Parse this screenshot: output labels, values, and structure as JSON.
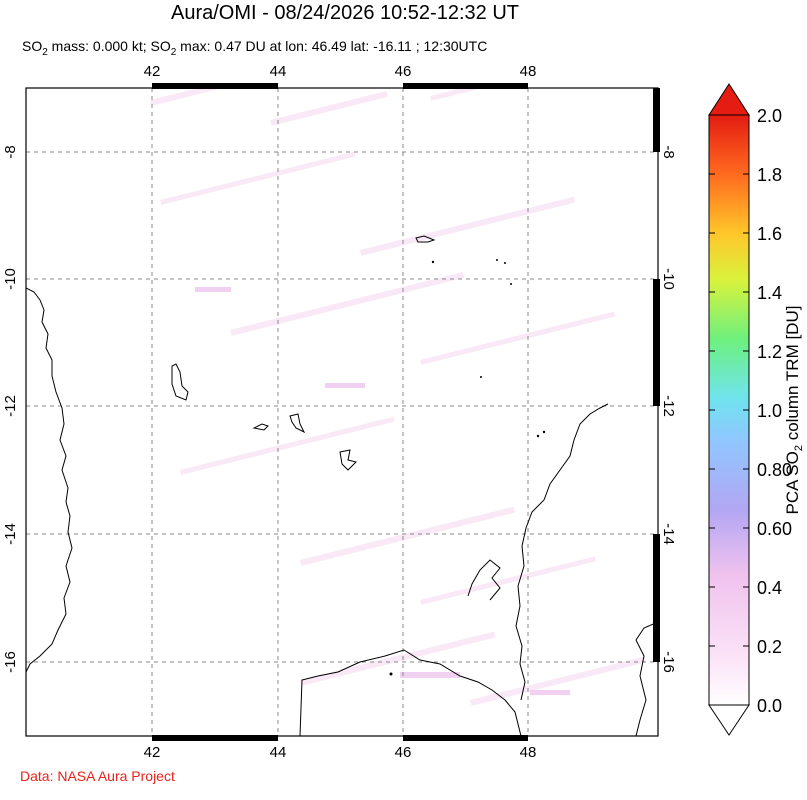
{
  "header": {
    "title": "Aura/OMI - 08/24/2026 10:52-12:32 UT",
    "subtitle_parts": [
      "SO",
      "2",
      " mass: 0.000 kt; SO",
      "2",
      " max: 0.47 DU at lon: 46.49 lat: -16.11 ; 12:30UTC"
    ]
  },
  "map": {
    "lon_ticks": [
      "42",
      "44",
      "46",
      "48"
    ],
    "lat_ticks": [
      "-8",
      "-10",
      "-12",
      "-14",
      "-16"
    ]
  },
  "colorbar": {
    "ticks": [
      "2.0",
      "1.8",
      "1.6",
      "1.4",
      "1.2",
      "1.0",
      "0.80",
      "0.60",
      "0.4",
      "0.2",
      "0.0"
    ],
    "label_parts": [
      "PCA SO",
      "2",
      " column TRM [DU]"
    ],
    "colors": [
      "#ffffff",
      "#f4cfef",
      "#b8a8f2",
      "#8fc8ff",
      "#6fe6ec",
      "#7ff07a",
      "#e6f23c",
      "#ffb02a",
      "#ff5a1e",
      "#e61d12"
    ]
  },
  "footer": {
    "credit": "Data: NASA Aura Project"
  }
}
